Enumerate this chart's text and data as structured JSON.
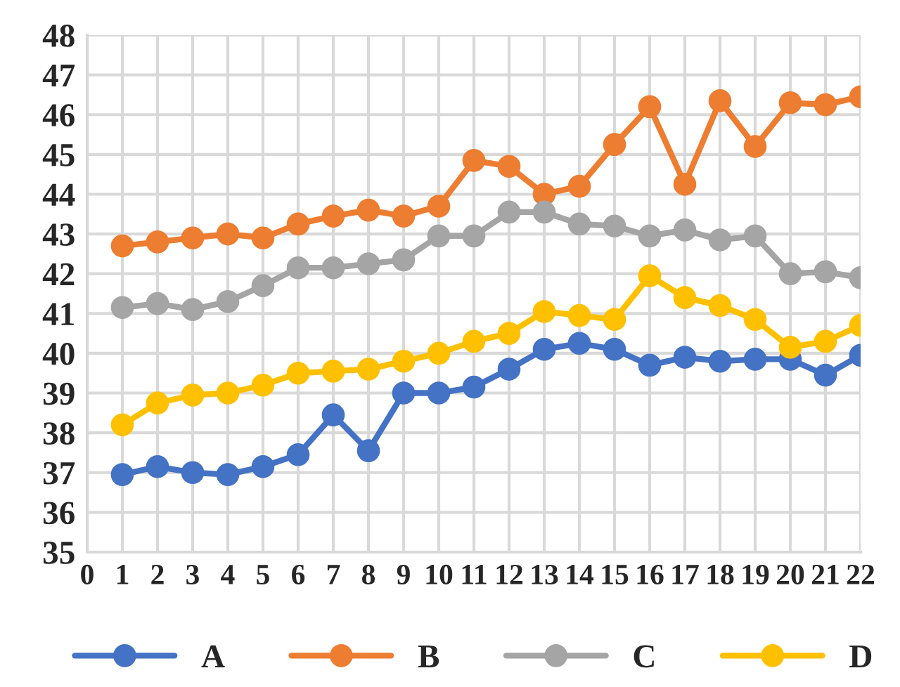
{
  "chart_data": {
    "type": "line",
    "x": [
      1,
      2,
      3,
      4,
      5,
      6,
      7,
      8,
      9,
      10,
      11,
      12,
      13,
      14,
      15,
      16,
      17,
      18,
      19,
      20,
      21,
      22
    ],
    "series": [
      {
        "name": "A",
        "color": "#4472c4",
        "values": [
          36.95,
          37.15,
          37.0,
          36.95,
          37.15,
          37.45,
          38.45,
          37.55,
          39.0,
          39.0,
          39.15,
          39.6,
          40.1,
          40.25,
          40.1,
          39.7,
          39.9,
          39.8,
          39.85,
          39.85,
          39.45,
          39.95
        ]
      },
      {
        "name": "B",
        "color": "#ed7d31",
        "values": [
          42.7,
          42.8,
          42.9,
          43.0,
          42.9,
          43.25,
          43.45,
          43.6,
          43.45,
          43.7,
          44.85,
          44.7,
          44.0,
          44.2,
          45.25,
          46.2,
          44.25,
          46.35,
          45.2,
          46.3,
          46.25,
          46.45
        ]
      },
      {
        "name": "C",
        "color": "#a5a5a5",
        "values": [
          41.15,
          41.25,
          41.1,
          41.3,
          41.7,
          42.15,
          42.15,
          42.25,
          42.35,
          42.95,
          42.95,
          43.55,
          43.55,
          43.25,
          43.2,
          42.95,
          43.1,
          42.85,
          42.95,
          42.0,
          42.05,
          41.9
        ]
      },
      {
        "name": "D",
        "color": "#ffc000",
        "values": [
          38.2,
          38.75,
          38.95,
          39.0,
          39.2,
          39.5,
          39.55,
          39.6,
          39.8,
          40.0,
          40.3,
          40.5,
          41.05,
          40.95,
          40.85,
          41.95,
          41.4,
          41.2,
          40.85,
          40.15,
          40.3,
          40.7
        ]
      }
    ],
    "xlim": [
      0,
      22
    ],
    "xticks": [
      0,
      1,
      2,
      3,
      4,
      5,
      6,
      7,
      8,
      9,
      10,
      11,
      12,
      13,
      14,
      15,
      16,
      17,
      18,
      19,
      20,
      21,
      22
    ],
    "ylim": [
      35,
      48
    ],
    "yticks": [
      35,
      36,
      37,
      38,
      39,
      40,
      41,
      42,
      43,
      44,
      45,
      46,
      47,
      48
    ],
    "grid": true,
    "legend": "bottom",
    "marker": "circle",
    "line_style": "solid"
  }
}
